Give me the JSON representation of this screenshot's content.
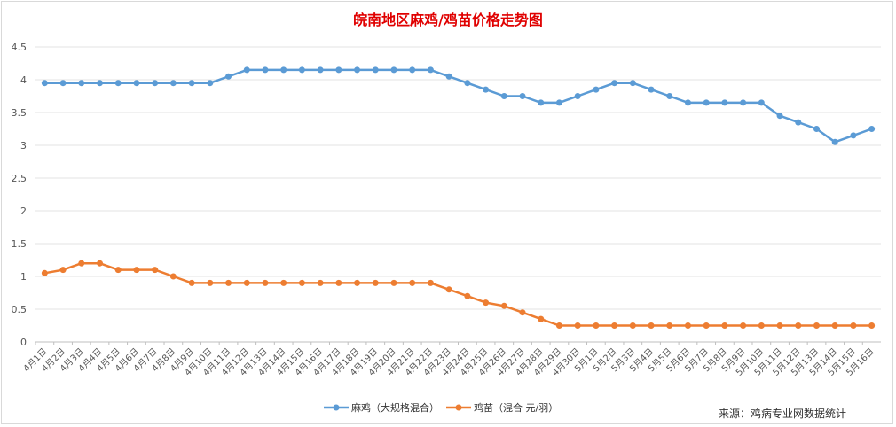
{
  "chart_data": {
    "type": "line",
    "title": "皖南地区麻鸡/鸡苗价格走势图",
    "categories": [
      "4月1日",
      "4月2日",
      "4月3日",
      "4月4日",
      "4月5日",
      "4月6日",
      "4月7日",
      "4月8日",
      "4月9日",
      "4月10日",
      "4月11日",
      "4月12日",
      "4月13日",
      "4月14日",
      "4月15日",
      "4月16日",
      "4月17日",
      "4月18日",
      "4月19日",
      "4月20日",
      "4月21日",
      "4月22日",
      "4月23日",
      "4月24日",
      "4月25日",
      "4月26日",
      "4月27日",
      "4月28日",
      "4月29日",
      "4月30日",
      "5月1日",
      "5月2日",
      "5月3日",
      "5月4日",
      "5月5日",
      "5月6日",
      "5月7日",
      "5月8日",
      "5月9日",
      "5月10日",
      "5月11日",
      "5月12日",
      "5月13日",
      "5月14日",
      "5月15日",
      "5月16日"
    ],
    "series": [
      {
        "name": "麻鸡（大规格混合）",
        "color": "#5b9bd5",
        "values": [
          3.95,
          3.95,
          3.95,
          3.95,
          3.95,
          3.95,
          3.95,
          3.95,
          3.95,
          3.95,
          4.05,
          4.15,
          4.15,
          4.15,
          4.15,
          4.15,
          4.15,
          4.15,
          4.15,
          4.15,
          4.15,
          4.15,
          4.05,
          3.95,
          3.85,
          3.75,
          3.75,
          3.65,
          3.65,
          3.75,
          3.85,
          3.95,
          3.95,
          3.85,
          3.75,
          3.65,
          3.65,
          3.65,
          3.65,
          3.65,
          3.45,
          3.35,
          3.25,
          3.05,
          3.15,
          3.25
        ]
      },
      {
        "name": "鸡苗（混合 元/羽）",
        "color": "#ed7d31",
        "values": [
          1.05,
          1.1,
          1.2,
          1.2,
          1.1,
          1.1,
          1.1,
          1.0,
          0.9,
          0.9,
          0.9,
          0.9,
          0.9,
          0.9,
          0.9,
          0.9,
          0.9,
          0.9,
          0.9,
          0.9,
          0.9,
          0.9,
          0.8,
          0.7,
          0.6,
          0.55,
          0.45,
          0.35,
          0.25,
          0.25,
          0.25,
          0.25,
          0.25,
          0.25,
          0.25,
          0.25,
          0.25,
          0.25,
          0.25,
          0.25,
          0.25,
          0.25,
          0.25,
          0.25,
          0.25,
          0.25
        ]
      }
    ],
    "yticks": [
      "0",
      "0.5",
      "1",
      "1.5",
      "2",
      "2.5",
      "3",
      "3.5",
      "4",
      "4.5"
    ],
    "ylim": [
      0,
      4.5
    ],
    "grid": true,
    "legend": "bottom",
    "source": "来源：鸡病专业网数据统计"
  }
}
